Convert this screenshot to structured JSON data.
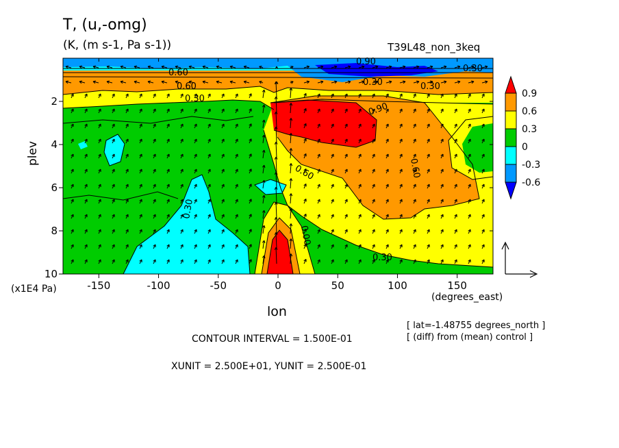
{
  "header": {
    "title": "T, (u,-omg)",
    "units": "(K, (m s-1, Pa s-1))",
    "run": "T39L48_non_3keq"
  },
  "footer": {
    "yunit": "(x1E4 Pa)",
    "xunit": "(degrees_east)",
    "lat_info": "[ lat=-1.48755 degrees_north ]",
    "diff_info": "[ (diff) from (mean) control ]",
    "contour_interval": "CONTOUR INTERVAL = 1.500E-01",
    "vector_units": "XUNIT = 2.500E+01, YUNIT = 2.500E-01"
  },
  "chart_data": {
    "type": "heatmap",
    "xlabel": "lon",
    "ylabel": "plev",
    "xlim": [
      -180,
      180
    ],
    "ylim": [
      10,
      0
    ],
    "x_ticks": [
      -150,
      -100,
      -50,
      0,
      50,
      100,
      150
    ],
    "y_ticks": [
      2,
      4,
      6,
      8,
      10
    ],
    "colorbar": {
      "levels": [
        "0.9",
        "0.6",
        "0.3",
        "0",
        "-0.3",
        "-0.6"
      ],
      "colors": [
        "#ff0000",
        "#ff9900",
        "#ffff00",
        "#00cc00",
        "#00ffff",
        "#0099ff",
        "#0000ff"
      ]
    },
    "contour_labels": [
      "0.90",
      "0.60",
      "0.60",
      "0.60",
      "0.30",
      "0.30",
      "0.30",
      "0.00",
      "0.60",
      "0.90",
      "0.30",
      "0.30",
      "0.30"
    ],
    "vector_overlay": true
  },
  "colors": {
    "red": "#ff0000",
    "orange": "#ff9900",
    "yellow": "#ffff00",
    "green": "#00cc00",
    "cyan": "#00ffff",
    "blue": "#0099ff",
    "navy": "#0000ff"
  }
}
